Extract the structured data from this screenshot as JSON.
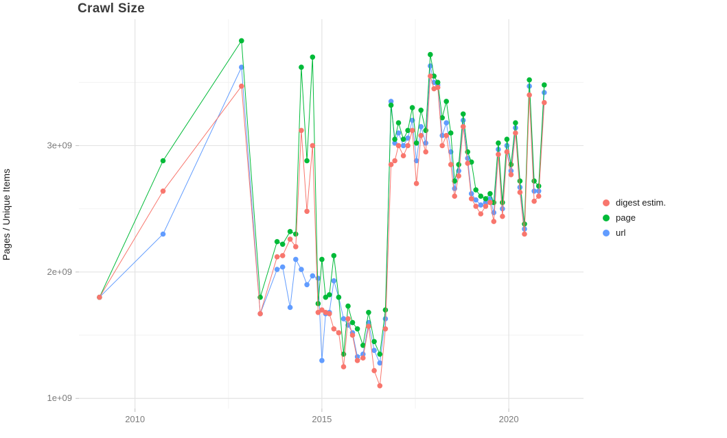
{
  "chart": {
    "title": "Crawl Size",
    "ylabel": "Pages / Unique Items"
  },
  "legend": {
    "items": [
      {
        "label": "digest estim.",
        "color": "#F8766D"
      },
      {
        "label": "page",
        "color": "#00BA38"
      },
      {
        "label": "url",
        "color": "#619CFF"
      }
    ]
  },
  "chart_data": {
    "type": "line",
    "title": "Crawl Size",
    "xlabel": "",
    "ylabel": "Pages / Unique Items",
    "grid": true,
    "legend_position": "right",
    "x_unit": "year",
    "y_unit": "pages / unique items (count)",
    "xlim": [
      2008.5,
      2022.0
    ],
    "ylim": [
      920000000,
      4000000000
    ],
    "x_ticks": [
      {
        "value": 2010,
        "label": "2010"
      },
      {
        "value": 2015,
        "label": "2015"
      },
      {
        "value": 2020,
        "label": "2020"
      }
    ],
    "y_ticks": [
      {
        "value": 1000000000,
        "label": "1e+09"
      },
      {
        "value": 2000000000,
        "label": "2e+09"
      },
      {
        "value": 3000000000,
        "label": "3e+09"
      }
    ],
    "x_minor_ticks": [
      2012.5,
      2017.5
    ],
    "y_minor_ticks": [
      1500000000,
      2500000000,
      3500000000
    ],
    "x": [
      2009.05,
      2010.75,
      2012.85,
      2013.35,
      2013.8,
      2013.95,
      2014.15,
      2014.3,
      2014.45,
      2014.6,
      2014.75,
      2014.9,
      2015.0,
      2015.1,
      2015.2,
      2015.32,
      2015.45,
      2015.58,
      2015.7,
      2015.82,
      2015.95,
      2016.1,
      2016.25,
      2016.4,
      2016.55,
      2016.7,
      2016.85,
      2016.95,
      2017.05,
      2017.18,
      2017.3,
      2017.42,
      2017.53,
      2017.65,
      2017.78,
      2017.9,
      2018.0,
      2018.1,
      2018.22,
      2018.33,
      2018.45,
      2018.55,
      2018.66,
      2018.78,
      2018.9,
      2019.0,
      2019.12,
      2019.25,
      2019.38,
      2019.5,
      2019.6,
      2019.72,
      2019.83,
      2019.95,
      2020.06,
      2020.18,
      2020.3,
      2020.42,
      2020.55,
      2020.68,
      2020.8,
      2020.95
    ],
    "series": [
      {
        "name": "digest estim.",
        "color": "#F8766D",
        "values_e9": [
          1.8,
          2.64,
          3.47,
          1.67,
          2.12,
          2.13,
          2.26,
          2.2,
          3.12,
          2.48,
          3.0,
          1.68,
          1.7,
          1.68,
          1.67,
          1.55,
          1.52,
          1.25,
          1.63,
          1.5,
          1.3,
          1.32,
          1.57,
          1.22,
          1.1,
          1.55,
          2.85,
          2.88,
          3.0,
          2.92,
          3.0,
          3.12,
          2.7,
          3.08,
          2.95,
          3.55,
          3.45,
          3.46,
          3.0,
          3.08,
          2.85,
          2.6,
          2.76,
          3.15,
          2.86,
          2.58,
          2.52,
          2.46,
          2.52,
          2.55,
          2.4,
          2.93,
          2.44,
          2.95,
          2.77,
          3.1,
          2.63,
          2.3,
          3.4,
          2.56,
          2.6,
          3.34
        ]
      },
      {
        "name": "page",
        "color": "#00BA38",
        "values_e9": [
          1.8,
          2.88,
          3.83,
          1.8,
          2.24,
          2.22,
          2.32,
          2.3,
          3.62,
          2.88,
          3.7,
          1.75,
          2.1,
          1.8,
          1.82,
          2.13,
          1.8,
          1.35,
          1.73,
          1.6,
          1.55,
          1.42,
          1.68,
          1.45,
          1.35,
          1.7,
          3.32,
          3.05,
          3.18,
          3.05,
          3.12,
          3.3,
          3.02,
          3.28,
          3.12,
          3.72,
          3.55,
          3.5,
          3.22,
          3.35,
          3.1,
          2.72,
          2.85,
          3.25,
          2.95,
          2.87,
          2.65,
          2.6,
          2.58,
          2.62,
          2.55,
          3.02,
          2.55,
          3.05,
          2.85,
          3.18,
          2.72,
          2.38,
          3.52,
          2.72,
          2.68,
          3.48
        ]
      },
      {
        "name": "url",
        "color": "#619CFF",
        "values_e9": [
          1.8,
          2.3,
          3.62,
          1.67,
          2.02,
          2.04,
          1.72,
          2.1,
          2.02,
          1.9,
          1.97,
          1.95,
          1.3,
          1.67,
          1.68,
          1.93,
          1.8,
          1.63,
          1.58,
          1.52,
          1.33,
          1.35,
          1.6,
          1.38,
          1.28,
          1.63,
          3.35,
          3.02,
          3.1,
          3.0,
          3.06,
          3.2,
          2.88,
          3.15,
          3.02,
          3.63,
          3.5,
          3.48,
          3.08,
          3.18,
          2.95,
          2.66,
          2.8,
          3.2,
          2.9,
          2.62,
          2.57,
          2.53,
          2.55,
          2.58,
          2.47,
          2.97,
          2.5,
          3.0,
          2.8,
          3.14,
          2.67,
          2.34,
          3.47,
          2.64,
          2.64,
          3.42
        ]
      }
    ]
  },
  "colors": {
    "grid_major": "#e3e3e3",
    "grid_minor": "#f2f2f2",
    "tick_label": "#7b7b7b",
    "tick_mark": "#bfbfbf",
    "title": "#3c3c3c"
  }
}
